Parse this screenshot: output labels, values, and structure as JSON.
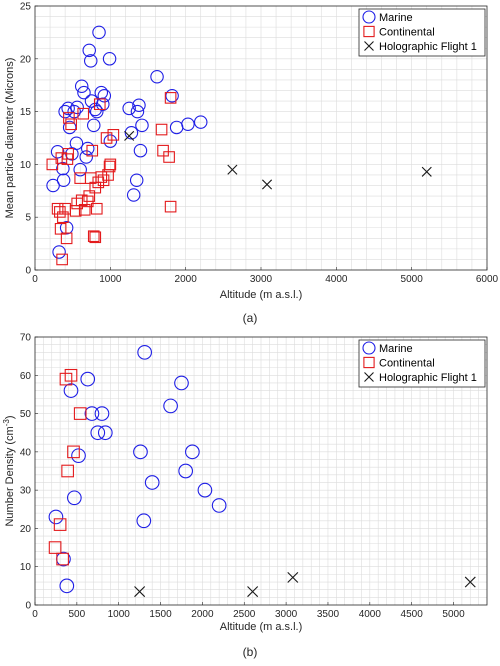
{
  "colors": {
    "marine": "#1f1fe6",
    "continental": "#e31a1c",
    "holographic": "#1a1a1a",
    "grid": "#dcdcdc"
  },
  "chart_data": [
    {
      "type": "scatter",
      "caption": "(a)",
      "xlabel": "Altitude (m a.s.l.)",
      "ylabel": "Mean particle diameter (Microns)",
      "xlim": [
        0,
        6000
      ],
      "ylim": [
        0,
        25
      ],
      "xticks": [
        "0",
        "1000",
        "2000",
        "3000",
        "4000",
        "5000",
        "6000"
      ],
      "yticks": [
        "0",
        "5",
        "10",
        "15",
        "20",
        "25"
      ],
      "grid": true,
      "legend_position": "top-right",
      "series": [
        {
          "name": "Marine",
          "marker": "circle",
          "points": [
            [
              240,
              8.0
            ],
            [
              300,
              11.2
            ],
            [
              320,
              1.7
            ],
            [
              370,
              9.6
            ],
            [
              380,
              8.5
            ],
            [
              400,
              15.0
            ],
            [
              420,
              4.0
            ],
            [
              440,
              15.3
            ],
            [
              460,
              13.5
            ],
            [
              490,
              11.0
            ],
            [
              520,
              15.0
            ],
            [
              550,
              12.0
            ],
            [
              560,
              15.4
            ],
            [
              600,
              9.5
            ],
            [
              620,
              17.4
            ],
            [
              650,
              16.8
            ],
            [
              680,
              10.7
            ],
            [
              700,
              11.5
            ],
            [
              720,
              20.8
            ],
            [
              740,
              19.8
            ],
            [
              750,
              16.0
            ],
            [
              780,
              13.7
            ],
            [
              800,
              15.2
            ],
            [
              820,
              15.0
            ],
            [
              850,
              22.5
            ],
            [
              880,
              16.8
            ],
            [
              900,
              15.7
            ],
            [
              920,
              16.5
            ],
            [
              990,
              20.0
            ],
            [
              1000,
              12.2
            ],
            [
              1250,
              15.3
            ],
            [
              1280,
              13.0
            ],
            [
              1310,
              7.1
            ],
            [
              1350,
              8.5
            ],
            [
              1360,
              15.0
            ],
            [
              1380,
              15.6
            ],
            [
              1400,
              11.3
            ],
            [
              1420,
              13.7
            ],
            [
              1620,
              18.3
            ],
            [
              1820,
              16.5
            ],
            [
              1880,
              13.5
            ],
            [
              2030,
              13.8
            ],
            [
              2200,
              14.0
            ]
          ]
        },
        {
          "name": "Continental",
          "marker": "square",
          "points": [
            [
              230,
              10.0
            ],
            [
              300,
              5.8
            ],
            [
              330,
              5.5
            ],
            [
              340,
              3.9
            ],
            [
              350,
              10.6
            ],
            [
              360,
              1.0
            ],
            [
              370,
              5.0
            ],
            [
              400,
              5.8
            ],
            [
              420,
              3.0
            ],
            [
              430,
              10.5
            ],
            [
              440,
              11.0
            ],
            [
              450,
              14.4
            ],
            [
              480,
              13.8
            ],
            [
              540,
              5.6
            ],
            [
              560,
              6.3
            ],
            [
              600,
              8.7
            ],
            [
              620,
              6.6
            ],
            [
              640,
              14.8
            ],
            [
              660,
              5.7
            ],
            [
              700,
              6.5
            ],
            [
              720,
              7.0
            ],
            [
              740,
              8.7
            ],
            [
              760,
              11.3
            ],
            [
              780,
              3.2
            ],
            [
              800,
              3.1
            ],
            [
              800,
              7.8
            ],
            [
              820,
              5.8
            ],
            [
              840,
              8.3
            ],
            [
              860,
              15.7
            ],
            [
              880,
              8.8
            ],
            [
              910,
              8.5
            ],
            [
              950,
              12.5
            ],
            [
              970,
              9.0
            ],
            [
              990,
              9.8
            ],
            [
              1000,
              10.0
            ],
            [
              1040,
              12.8
            ],
            [
              1680,
              13.3
            ],
            [
              1700,
              11.3
            ],
            [
              1780,
              10.7
            ],
            [
              1800,
              16.3
            ],
            [
              1800,
              6.0
            ]
          ]
        },
        {
          "name": "Holographic Flight 1",
          "marker": "x",
          "points": [
            [
              1250,
              12.7
            ],
            [
              2620,
              9.5
            ],
            [
              3080,
              8.1
            ],
            [
              5200,
              9.3
            ]
          ]
        }
      ]
    },
    {
      "type": "scatter",
      "caption": "(b)",
      "xlabel": "Altitude (m a.s.l.)",
      "ylabel_main": "Number Density (cm",
      "ylabel_sup": "-3",
      "ylabel_close": ")",
      "xlim": [
        0,
        5400
      ],
      "ylim": [
        0,
        70
      ],
      "xticks": [
        "0",
        "500",
        "1000",
        "1500",
        "2000",
        "2500",
        "3000",
        "3500",
        "4000",
        "4500",
        "5000"
      ],
      "yticks": [
        "0",
        "10",
        "20",
        "30",
        "40",
        "50",
        "60",
        "70"
      ],
      "grid": true,
      "legend_position": "top-right",
      "series": [
        {
          "name": "Marine",
          "marker": "circle",
          "points": [
            [
              250,
              23
            ],
            [
              340,
              12
            ],
            [
              380,
              5
            ],
            [
              430,
              56
            ],
            [
              470,
              28
            ],
            [
              520,
              39
            ],
            [
              630,
              59
            ],
            [
              680,
              50
            ],
            [
              750,
              45
            ],
            [
              800,
              50
            ],
            [
              840,
              45
            ],
            [
              1260,
              40
            ],
            [
              1300,
              22
            ],
            [
              1310,
              66
            ],
            [
              1400,
              32
            ],
            [
              1620,
              52
            ],
            [
              1750,
              58
            ],
            [
              1800,
              35
            ],
            [
              1880,
              40
            ],
            [
              2030,
              30
            ],
            [
              2200,
              26
            ]
          ]
        },
        {
          "name": "Continental",
          "marker": "square",
          "points": [
            [
              240,
              15
            ],
            [
              300,
              21
            ],
            [
              330,
              12
            ],
            [
              370,
              59
            ],
            [
              390,
              35
            ],
            [
              430,
              60
            ],
            [
              460,
              40
            ],
            [
              540,
              50
            ]
          ]
        },
        {
          "name": "Holographic Flight 1",
          "marker": "x",
          "points": [
            [
              1250,
              3.5
            ],
            [
              2600,
              3.5
            ],
            [
              3080,
              7.2
            ],
            [
              5200,
              6.0
            ]
          ]
        }
      ]
    }
  ]
}
